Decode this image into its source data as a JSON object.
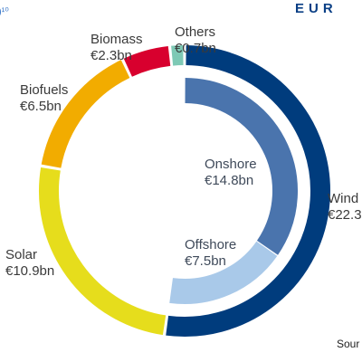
{
  "header": {
    "corner_fragment": ")¹⁰",
    "brand_text": "EUR"
  },
  "footer": {
    "source_fragment": "Sour"
  },
  "colors": {
    "wind": "#003c7d",
    "onshore": "#4a74ad",
    "offshore": "#a9c9e9",
    "solar": "#e6dd1c",
    "biofuels": "#f2ac00",
    "biomass": "#d8002e",
    "others": "#7ec9b5"
  },
  "chart_data": {
    "type": "pie",
    "variant": "double-donut",
    "unit": "€bn",
    "outer_ring": [
      {
        "name": "Wind",
        "value": 22.3,
        "label": "Wind",
        "value_label": "€22.3"
      },
      {
        "name": "Solar",
        "value": 10.9,
        "label": "Solar",
        "value_label": "€10.9bn"
      },
      {
        "name": "Biofuels",
        "value": 6.5,
        "label": "Biofuels",
        "value_label": "€6.5bn"
      },
      {
        "name": "Biomass",
        "value": 2.3,
        "label": "Biomass",
        "value_label": "€2.3bn"
      },
      {
        "name": "Others",
        "value": 0.7,
        "label": "Others",
        "value_label": "€0.7bn"
      }
    ],
    "inner_ring": [
      {
        "name": "Onshore",
        "value": 14.8,
        "label": "Onshore",
        "value_label": "€14.8bn"
      },
      {
        "name": "Offshore",
        "value": 7.5,
        "label": "Offshore",
        "value_label": "€7.5bn"
      }
    ]
  }
}
